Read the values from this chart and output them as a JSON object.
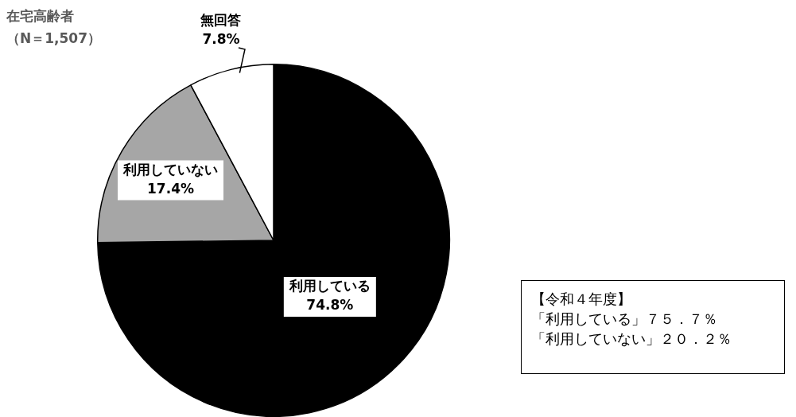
{
  "chart_data": {
    "type": "pie",
    "title": "在宅高齢者",
    "subtitle": "（N＝1,507）",
    "categories": [
      "利用している",
      "利用していない",
      "無回答"
    ],
    "values": [
      74.8,
      17.4,
      7.8
    ],
    "colors": [
      "#000000",
      "#a6a6a6",
      "#ffffff"
    ],
    "value_labels": [
      "74.8%",
      "17.4%",
      "7.8%"
    ],
    "legend": false,
    "annotations": [
      "【令和４年度】",
      "「利用している」７５．７％",
      "「利用していない」２０．２％"
    ]
  }
}
